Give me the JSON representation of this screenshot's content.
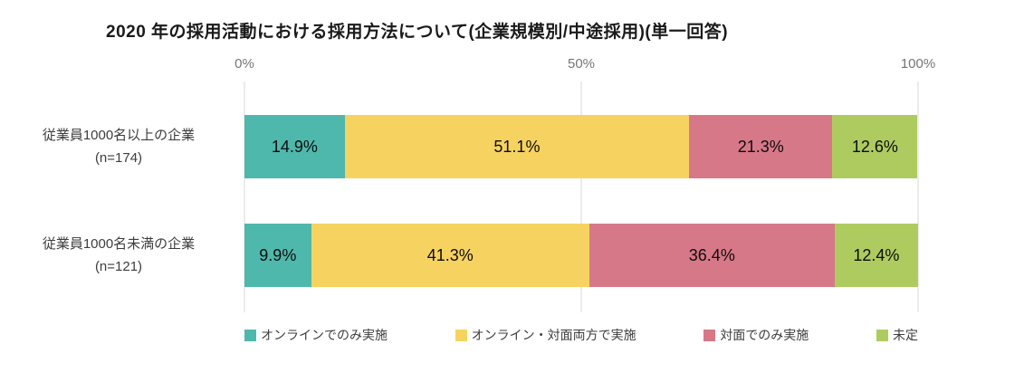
{
  "title": "2020 年の採用活動における採用方法について(企業規模別/中途採用)(単一回答)",
  "chart_data": {
    "type": "bar",
    "stacked": true,
    "orientation": "horizontal",
    "title": "2020 年の採用活動における採用方法について(企業規模別/中途採用)(単一回答)",
    "x_axis": {
      "range": [
        0,
        100
      ],
      "ticks": [
        {
          "label": "0%",
          "pos": 0
        },
        {
          "label": "50%",
          "pos": 50
        },
        {
          "label": "100%",
          "pos": 100
        }
      ]
    },
    "categories": [
      {
        "label": "従業員1000名以上の企業",
        "sub_label": "(n=174)"
      },
      {
        "label": "従業員1000名未満の企業",
        "sub_label": "(n=121)"
      }
    ],
    "series": [
      {
        "name": "オンラインでのみ実施",
        "color": "#4FB8AC",
        "values": [
          14.9,
          9.9
        ]
      },
      {
        "name": "オンライン・対面両方で実施",
        "color": "#F6D361",
        "values": [
          51.1,
          41.3
        ]
      },
      {
        "name": "対面でのみ実施",
        "color": "#D77888",
        "values": [
          21.3,
          36.4
        ]
      },
      {
        "name": "未定",
        "color": "#AECB60",
        "values": [
          12.6,
          12.4
        ]
      }
    ],
    "value_suffix": "%",
    "grid": "vertical-lines-at-ticks",
    "legend_position": "bottom"
  }
}
